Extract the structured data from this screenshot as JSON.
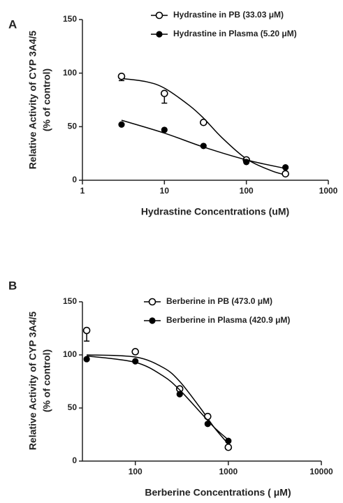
{
  "chart_data": [
    {
      "type": "line",
      "panel_label": "A",
      "xscale": "log",
      "xlabel": "Hydrastine Concentrations (uM)",
      "ylabel": [
        "Relative Activity of CYP 3A4/5",
        "(% of control)"
      ],
      "xlim": [
        1,
        1000
      ],
      "xticks": [
        1,
        10,
        100,
        1000
      ],
      "ylim": [
        0,
        150
      ],
      "yticks": [
        0,
        50,
        100,
        150
      ],
      "series": [
        {
          "name": "Hydrastine in PB (33.03 μM)",
          "marker": "open",
          "color": "#000000",
          "x": [
            3,
            10,
            30,
            100,
            300
          ],
          "values": [
            97,
            81,
            54,
            19,
            6
          ],
          "errors": [
            4,
            9,
            null,
            null,
            null
          ],
          "fit": {
            "x": [
              3,
              6,
              10,
              20,
              30,
              50,
              100,
              200,
              300
            ],
            "values": [
              95,
              92,
              86,
              70,
              58,
              40,
              20,
              9,
              5
            ]
          }
        },
        {
          "name": "Hydrastine in Plasma (5.20 μM)",
          "marker": "filled",
          "color": "#000000",
          "x": [
            3,
            10,
            30,
            100,
            300
          ],
          "values": [
            52,
            47,
            32,
            17,
            12
          ],
          "errors": [
            null,
            null,
            null,
            null,
            null
          ],
          "fit": {
            "x": [
              3,
              10,
              30,
              100,
              300
            ],
            "values": [
              56,
              44,
              31,
              19,
              11
            ]
          }
        }
      ]
    },
    {
      "type": "line",
      "panel_label": "B",
      "xscale": "log",
      "xlabel": "Berberine Concentrations ( μM)",
      "ylabel": [
        "Relative Activity of CYP 3A4/5",
        "(% of control)"
      ],
      "xlim": [
        27,
        10000
      ],
      "xticks": [
        100,
        1000,
        10000
      ],
      "ylim": [
        0,
        150
      ],
      "yticks": [
        0,
        50,
        100,
        150
      ],
      "series": [
        {
          "name": "Berberine in PB (473.0  μM)",
          "marker": "open",
          "color": "#000000",
          "x": [
            30,
            100,
            300,
            600,
            1000
          ],
          "values": [
            123,
            103,
            68,
            42,
            13
          ],
          "errors": [
            10,
            null,
            null,
            null,
            null
          ],
          "fit": {
            "x": [
              30,
              100,
              200,
              300,
              500,
              700,
              1000
            ],
            "values": [
              100,
              98,
              88,
              75,
              50,
              32,
              16
            ]
          }
        },
        {
          "name": "Berberine in Plasma (420.9 μM)",
          "marker": "filled",
          "color": "#000000",
          "x": [
            30,
            100,
            300,
            600,
            1000
          ],
          "values": [
            96,
            94,
            63,
            35,
            19
          ],
          "errors": [
            null,
            null,
            null,
            null,
            null
          ],
          "fit": {
            "x": [
              30,
              100,
              200,
              300,
              500,
              700,
              1000
            ],
            "values": [
              99,
              93,
              80,
              67,
              46,
              32,
              20
            ]
          }
        }
      ]
    }
  ]
}
